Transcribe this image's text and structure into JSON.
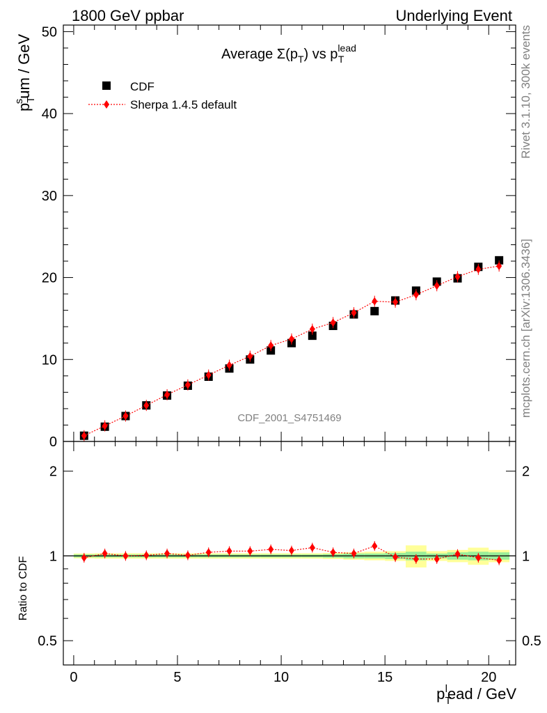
{
  "header": {
    "left": "1800 GeV ppbar",
    "right": "Underlying Event"
  },
  "side": {
    "rivet": "Rivet 3.1.10,  300k events",
    "mcplots": "mcplots.cern.ch [arXiv:1306.3436]"
  },
  "watermark": "CDF_2001_S4751469",
  "chart_data": [
    {
      "type": "scatter",
      "panel": "main",
      "title": "Average Σ(p_T) vs p_T^lead",
      "ylabel": "p_T^sum / GeV",
      "xlim": [
        -0.5,
        21.3
      ],
      "ylim": [
        0,
        50.8
      ],
      "yticks": [
        10,
        20,
        30,
        40,
        50
      ],
      "ytick_labels": [
        "10",
        "20",
        "30",
        "40",
        "50"
      ],
      "legend": "top-left",
      "grid": false,
      "x": [
        0.5,
        1.5,
        2.5,
        3.5,
        4.5,
        5.5,
        6.5,
        7.5,
        8.5,
        9.5,
        10.5,
        11.5,
        12.5,
        13.5,
        14.5,
        15.5,
        16.5,
        17.5,
        18.5,
        19.5,
        20.5
      ],
      "series": [
        {
          "name": "CDF",
          "color": "#000000",
          "marker": "square",
          "values": [
            0.7,
            1.8,
            3.1,
            4.4,
            5.6,
            6.8,
            7.9,
            8.9,
            10.0,
            11.1,
            12.0,
            12.9,
            14.1,
            15.5,
            15.9,
            17.2,
            18.4,
            19.5,
            19.9,
            21.3,
            22.1
          ]
        },
        {
          "name": "Sherpa 1.4.5 default",
          "color": "#ff0000",
          "marker": "diamond",
          "line": "dotted",
          "values": [
            0.7,
            1.9,
            3.1,
            4.4,
            5.7,
            6.9,
            8.1,
            9.3,
            10.4,
            11.7,
            12.5,
            13.7,
            14.5,
            15.7,
            17.1,
            17.0,
            17.9,
            19.0,
            20.1,
            21.0,
            21.4
          ]
        }
      ]
    },
    {
      "type": "scatter",
      "panel": "ratio",
      "ylabel": "Ratio to CDF",
      "xlabel": "p_T^lead / GeV",
      "xlim": [
        -0.5,
        21.3
      ],
      "xticks": [
        0,
        5,
        10,
        15,
        20
      ],
      "xtick_labels": [
        "0",
        "5",
        "10",
        "15",
        "20"
      ],
      "scale": "log",
      "ylim": [
        0.41,
        2.55
      ],
      "yticks": [
        0.5,
        1,
        2
      ],
      "ytick_labels": [
        "0.5",
        "1",
        "2"
      ],
      "x": [
        0.5,
        1.5,
        2.5,
        3.5,
        4.5,
        5.5,
        6.5,
        7.5,
        8.5,
        9.5,
        10.5,
        11.5,
        12.5,
        13.5,
        14.5,
        15.5,
        16.5,
        17.5,
        18.5,
        19.5,
        20.5
      ],
      "bands": {
        "stat_color": "#99ee99",
        "total_color": "#ffff99",
        "stat_halfwidth": [
          0.012,
          0.012,
          0.012,
          0.012,
          0.012,
          0.012,
          0.012,
          0.012,
          0.012,
          0.012,
          0.012,
          0.012,
          0.015,
          0.02,
          0.02,
          0.025,
          0.035,
          0.02,
          0.03,
          0.035,
          0.03
        ],
        "total_halfwidth": [
          0.02,
          0.022,
          0.022,
          0.022,
          0.022,
          0.022,
          0.022,
          0.022,
          0.022,
          0.022,
          0.022,
          0.022,
          0.025,
          0.03,
          0.035,
          0.04,
          0.09,
          0.04,
          0.05,
          0.07,
          0.05
        ]
      },
      "series": [
        {
          "name": "Sherpa 1.4.5 default",
          "color": "#ff0000",
          "marker": "diamond",
          "line": "dotted",
          "values": [
            0.985,
            1.02,
            1.0,
            1.005,
            1.02,
            1.005,
            1.03,
            1.04,
            1.04,
            1.055,
            1.045,
            1.07,
            1.03,
            1.02,
            1.085,
            0.99,
            0.975,
            0.975,
            1.015,
            0.985,
            0.965
          ]
        }
      ]
    }
  ]
}
